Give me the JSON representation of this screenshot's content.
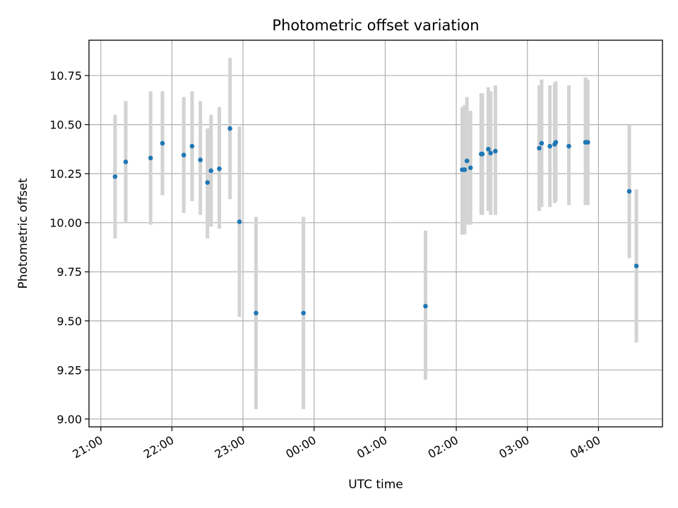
{
  "chart_data": {
    "type": "scatter",
    "title": "Photometric offset variation",
    "xlabel": "UTC time",
    "ylabel": "Photometric offset",
    "x_tick_labels": [
      "21:00",
      "22:00",
      "23:00",
      "00:00",
      "01:00",
      "02:00",
      "03:00",
      "04:00"
    ],
    "y_tick_labels": [
      "9.00",
      "9.25",
      "9.50",
      "9.75",
      "10.00",
      "10.25",
      "10.50",
      "10.75"
    ],
    "xlim": [
      "20:50",
      "04:54"
    ],
    "ylim": [
      8.96,
      10.93
    ],
    "grid": true,
    "legend": "none",
    "colors": {
      "points": "#1f77b4",
      "errorbars": "#d3d3d3",
      "grid": "#b0b0b0"
    },
    "points": [
      {
        "t": "21:12",
        "y": 10.235,
        "lo": 9.92,
        "hi": 10.55
      },
      {
        "t": "21:21",
        "y": 10.31,
        "lo": 10.0,
        "hi": 10.62
      },
      {
        "t": "21:42",
        "y": 10.33,
        "lo": 9.99,
        "hi": 10.67
      },
      {
        "t": "21:52",
        "y": 10.405,
        "lo": 10.14,
        "hi": 10.67
      },
      {
        "t": "22:10",
        "y": 10.345,
        "lo": 10.05,
        "hi": 10.64
      },
      {
        "t": "22:17",
        "y": 10.39,
        "lo": 10.11,
        "hi": 10.67
      },
      {
        "t": "22:24",
        "y": 10.32,
        "lo": 10.04,
        "hi": 10.62
      },
      {
        "t": "22:30",
        "y": 10.205,
        "lo": 9.92,
        "hi": 10.48
      },
      {
        "t": "22:33",
        "y": 10.265,
        "lo": 9.98,
        "hi": 10.55
      },
      {
        "t": "22:40",
        "y": 10.275,
        "lo": 9.97,
        "hi": 10.59
      },
      {
        "t": "22:49",
        "y": 10.48,
        "lo": 10.12,
        "hi": 10.84
      },
      {
        "t": "22:57",
        "y": 10.005,
        "lo": 9.52,
        "hi": 10.49
      },
      {
        "t": "23:11",
        "y": 9.54,
        "lo": 9.05,
        "hi": 10.03
      },
      {
        "t": "23:51",
        "y": 9.54,
        "lo": 9.05,
        "hi": 10.03
      },
      {
        "t": "01:34",
        "y": 9.575,
        "lo": 9.2,
        "hi": 9.96
      },
      {
        "t": "02:05",
        "y": 10.27,
        "lo": 9.94,
        "hi": 10.59
      },
      {
        "t": "02:07",
        "y": 10.27,
        "lo": 9.94,
        "hi": 10.6
      },
      {
        "t": "02:09",
        "y": 10.315,
        "lo": 9.99,
        "hi": 10.64
      },
      {
        "t": "02:12",
        "y": 10.28,
        "lo": 9.99,
        "hi": 10.57
      },
      {
        "t": "02:21",
        "y": 10.35,
        "lo": 10.04,
        "hi": 10.66
      },
      {
        "t": "02:22",
        "y": 10.35,
        "lo": 10.04,
        "hi": 10.66
      },
      {
        "t": "02:27",
        "y": 10.375,
        "lo": 10.06,
        "hi": 10.69
      },
      {
        "t": "02:29",
        "y": 10.355,
        "lo": 10.04,
        "hi": 10.67
      },
      {
        "t": "02:33",
        "y": 10.365,
        "lo": 10.04,
        "hi": 10.7
      },
      {
        "t": "03:10",
        "y": 10.38,
        "lo": 10.06,
        "hi": 10.7
      },
      {
        "t": "03:12",
        "y": 10.405,
        "lo": 10.08,
        "hi": 10.73
      },
      {
        "t": "03:19",
        "y": 10.39,
        "lo": 10.08,
        "hi": 10.7
      },
      {
        "t": "03:23",
        "y": 10.4,
        "lo": 10.1,
        "hi": 10.71
      },
      {
        "t": "03:24",
        "y": 10.41,
        "lo": 10.11,
        "hi": 10.72
      },
      {
        "t": "03:35",
        "y": 10.39,
        "lo": 10.09,
        "hi": 10.7
      },
      {
        "t": "03:49",
        "y": 10.41,
        "lo": 10.09,
        "hi": 10.74
      },
      {
        "t": "03:51",
        "y": 10.41,
        "lo": 10.09,
        "hi": 10.73
      },
      {
        "t": "04:26",
        "y": 10.16,
        "lo": 9.82,
        "hi": 10.5
      },
      {
        "t": "04:32",
        "y": 9.78,
        "lo": 9.39,
        "hi": 10.17
      }
    ]
  }
}
